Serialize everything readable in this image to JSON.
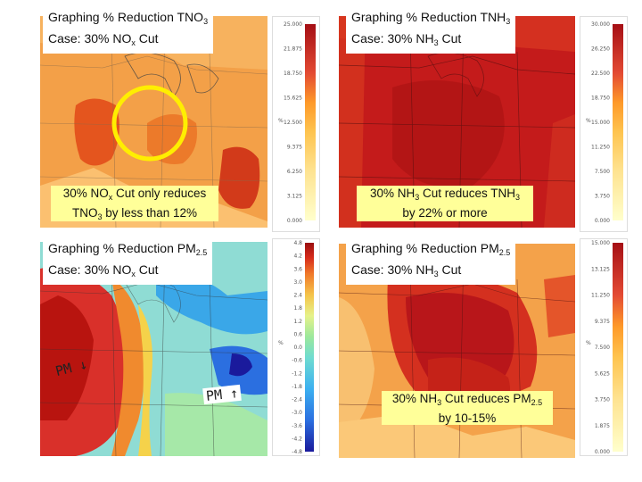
{
  "panels": [
    {
      "title_line1": "Graphing % Reduction TNO",
      "title_line1_sub": "3",
      "title_line2_pre": "Case: 30% NO",
      "title_line2_sub": "x",
      "title_line2_post": " Cut",
      "caption_line1_pre": "30% NO",
      "caption_line1_sub": "x",
      "caption_line1_post": " Cut only reduces",
      "caption_line2_pre": "TNO",
      "caption_line2_sub": "3",
      "caption_line2_post": " by less than 12%",
      "colorbar_ticks": [
        "25.000",
        "21.875",
        "18.750",
        "15.625",
        "12.500",
        "9.375",
        "6.250",
        "3.125",
        "0.000"
      ],
      "colorbar_unit": "%"
    },
    {
      "title_line1": "Graphing % Reduction TNH",
      "title_line1_sub": "3",
      "title_line2_pre": "Case: 30% NH",
      "title_line2_sub": "3",
      "title_line2_post": " Cut",
      "caption_line1_pre": "30% NH",
      "caption_line1_sub": "3",
      "caption_line1_post": " Cut reduces TNH",
      "caption_line1_sub2": "3",
      "caption_line2_pre": "by 22% or more",
      "colorbar_ticks": [
        "30.000",
        "26.250",
        "22.500",
        "18.750",
        "15.000",
        "11.250",
        "7.500",
        "3.750",
        "0.000"
      ],
      "colorbar_unit": "%"
    },
    {
      "title_line1": "Graphing % Reduction PM",
      "title_line1_sub": "2.5",
      "title_line2_pre": "Case: 30% NO",
      "title_line2_sub": "x",
      "title_line2_post": " Cut",
      "note_left": "PM ↓",
      "note_right": "PM ↑",
      "colorbar_ticks": [
        "4.8",
        "4.2",
        "3.6",
        "3.0",
        "2.4",
        "1.8",
        "1.2",
        "0.6",
        "0.0",
        "-0.6",
        "-1.2",
        "-1.8",
        "-2.4",
        "-3.0",
        "-3.6",
        "-4.2",
        "-4.8"
      ],
      "colorbar_unit": "%"
    },
    {
      "title_line1": "Graphing % Reduction PM",
      "title_line1_sub": "2.5",
      "title_line2_pre": "Case: 30% NH",
      "title_line2_sub": "3",
      "title_line2_post": " Cut",
      "caption_line1_pre": "30% NH",
      "caption_line1_sub": "3",
      "caption_line1_post": " Cut reduces PM",
      "caption_line1_sub2": "2.5",
      "caption_line2_pre": "by 10-15%",
      "colorbar_ticks": [
        "15.000",
        "13.125",
        "11.250",
        "9.375",
        "7.500",
        "5.625",
        "3.750",
        "1.875",
        "0.000"
      ],
      "colorbar_unit": "%"
    }
  ],
  "colors": {
    "highlight_circle": "#ffee00",
    "caption_bg": "#ffff99",
    "reduction_scale": [
      "#ffffcc",
      "#fee391",
      "#fec44f",
      "#fe9929",
      "#ec7014",
      "#e34a33",
      "#cc1a1a",
      "#a50f15"
    ],
    "diverging_scale": [
      "#1a1a9c",
      "#2b6fe0",
      "#3cb0f0",
      "#6fdcd0",
      "#9ce89c",
      "#e6f28a",
      "#f5c44a",
      "#f07a2a",
      "#d62a1a",
      "#9a0f0f"
    ]
  }
}
